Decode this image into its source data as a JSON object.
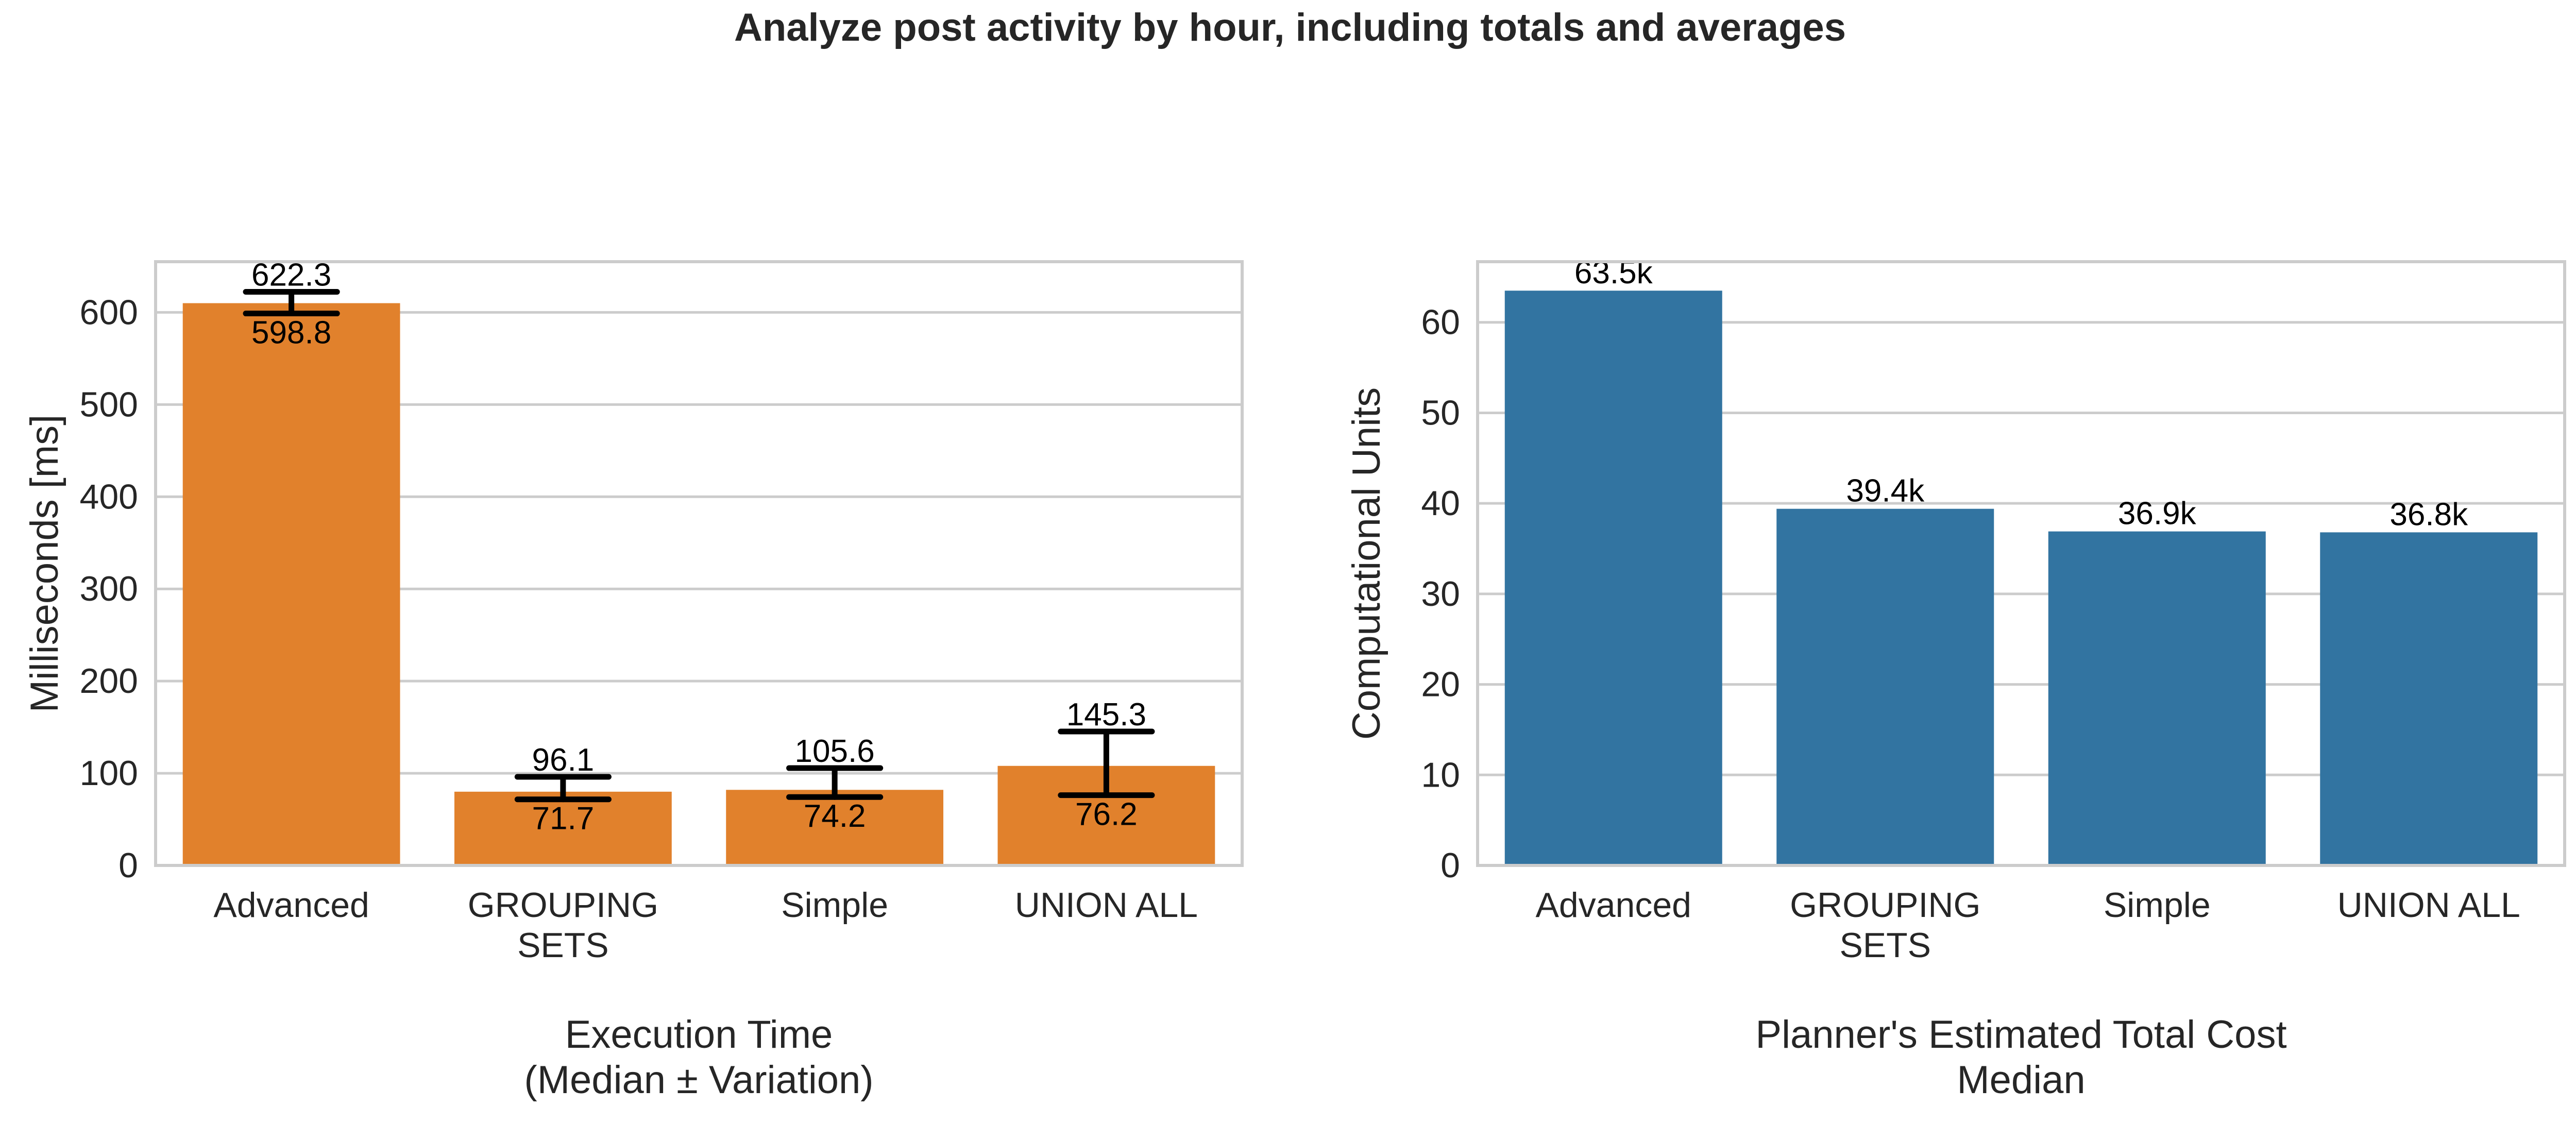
{
  "suptitle": "Analyze post activity by hour, including totals and averages",
  "chart_data": [
    {
      "type": "bar",
      "categories": [
        [
          "Advanced"
        ],
        [
          "GROUPING",
          "SETS"
        ],
        [
          "Simple"
        ],
        [
          "UNION ALL"
        ]
      ],
      "values": [
        610,
        80,
        82,
        108
      ],
      "error_low": [
        598.8,
        71.7,
        74.2,
        76.2
      ],
      "error_high": [
        622.3,
        96.1,
        105.6,
        145.3
      ],
      "label_low": [
        "598.8",
        "71.7",
        "74.2",
        "76.2"
      ],
      "label_high": [
        "622.3",
        "96.1",
        "105.6",
        "145.3"
      ],
      "ylabel": "Milliseconds [ms]",
      "xlabel": [
        "Execution Time",
        "(Median ± Variation)"
      ],
      "ylim": [
        0,
        655
      ],
      "yticks": [
        0,
        100,
        200,
        300,
        400,
        500,
        600
      ],
      "grid": true,
      "color": "#e1812c"
    },
    {
      "type": "bar",
      "categories": [
        [
          "Advanced"
        ],
        [
          "GROUPING",
          "SETS"
        ],
        [
          "Simple"
        ],
        [
          "UNION ALL"
        ]
      ],
      "values": [
        63.5,
        39.4,
        36.9,
        36.8
      ],
      "labels": [
        "63.5k",
        "39.4k",
        "36.9k",
        "36.8k"
      ],
      "ylabel": "Computational Units",
      "xlabel": [
        "Planner's Estimated Total Cost",
        "Median"
      ],
      "ylim": [
        0,
        66.7
      ],
      "yticks": [
        0,
        10,
        20,
        30,
        40,
        50,
        60
      ],
      "grid": true,
      "color": "#3274a1"
    }
  ]
}
